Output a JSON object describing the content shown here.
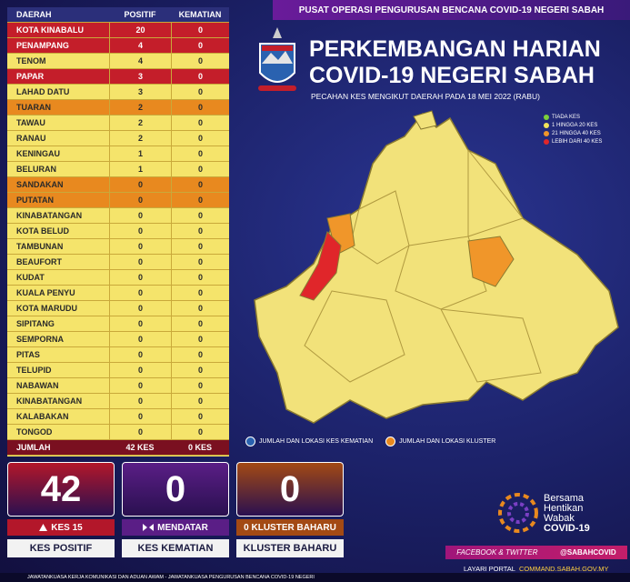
{
  "header": {
    "banner": "PUSAT OPERASI PENGURUSAN BENCANA COVID-19 NEGERI SABAH",
    "title_line1": "PERKEMBANGAN HARIAN",
    "title_line2": "COVID-19 NEGERI SABAH",
    "subtitle": "PECAHAN KES MENGIKUT DAERAH PADA 18 MEI 2022 (RABU)"
  },
  "legend": [
    {
      "label": "TIADA KES",
      "color": "#7ccf3a"
    },
    {
      "label": "1 HINGGA 20 KES",
      "color": "#f2e45a"
    },
    {
      "label": "21 HINGGA 40 KES",
      "color": "#f0962a"
    },
    {
      "label": "LEBIH DARI 40 KES",
      "color": "#e0262a"
    }
  ],
  "table": {
    "columns": [
      "DAERAH",
      "POSITIF",
      "KEMATIAN"
    ],
    "rows": [
      {
        "district": "KOTA KINABALU",
        "positif": 20,
        "kematian": 0,
        "color": "#c41e2a"
      },
      {
        "district": "PENAMPANG",
        "positif": 4,
        "kematian": 0,
        "color": "#c41e2a"
      },
      {
        "district": "TENOM",
        "positif": 4,
        "kematian": 0,
        "color": "#f5e46b"
      },
      {
        "district": "PAPAR",
        "positif": 3,
        "kematian": 0,
        "color": "#c41e2a"
      },
      {
        "district": "LAHAD DATU",
        "positif": 3,
        "kematian": 0,
        "color": "#f5e46b"
      },
      {
        "district": "TUARAN",
        "positif": 2,
        "kematian": 0,
        "color": "#e8891f"
      },
      {
        "district": "TAWAU",
        "positif": 2,
        "kematian": 0,
        "color": "#f5e46b"
      },
      {
        "district": "RANAU",
        "positif": 2,
        "kematian": 0,
        "color": "#f5e46b"
      },
      {
        "district": "KENINGAU",
        "positif": 1,
        "kematian": 0,
        "color": "#f5e46b"
      },
      {
        "district": "BELURAN",
        "positif": 1,
        "kematian": 0,
        "color": "#f5e46b"
      },
      {
        "district": "SANDAKAN",
        "positif": 0,
        "kematian": 0,
        "color": "#e8891f"
      },
      {
        "district": "PUTATAN",
        "positif": 0,
        "kematian": 0,
        "color": "#e8891f"
      },
      {
        "district": "KINABATANGAN",
        "positif": 0,
        "kematian": 0,
        "color": "#f5e46b"
      },
      {
        "district": "KOTA BELUD",
        "positif": 0,
        "kematian": 0,
        "color": "#f5e46b"
      },
      {
        "district": "TAMBUNAN",
        "positif": 0,
        "kematian": 0,
        "color": "#f5e46b"
      },
      {
        "district": "BEAUFORT",
        "positif": 0,
        "kematian": 0,
        "color": "#f5e46b"
      },
      {
        "district": "KUDAT",
        "positif": 0,
        "kematian": 0,
        "color": "#f5e46b"
      },
      {
        "district": "KUALA PENYU",
        "positif": 0,
        "kematian": 0,
        "color": "#f5e46b"
      },
      {
        "district": "KOTA MARUDU",
        "positif": 0,
        "kematian": 0,
        "color": "#f5e46b"
      },
      {
        "district": "SIPITANG",
        "positif": 0,
        "kematian": 0,
        "color": "#f5e46b"
      },
      {
        "district": "SEMPORNA",
        "positif": 0,
        "kematian": 0,
        "color": "#f5e46b"
      },
      {
        "district": "PITAS",
        "positif": 0,
        "kematian": 0,
        "color": "#f5e46b"
      },
      {
        "district": "TELUPID",
        "positif": 0,
        "kematian": 0,
        "color": "#f5e46b"
      },
      {
        "district": "NABAWAN",
        "positif": 0,
        "kematian": 0,
        "color": "#f5e46b"
      },
      {
        "district": "KINABATANGAN",
        "positif": 0,
        "kematian": 0,
        "color": "#f5e46b"
      },
      {
        "district": "KALABAKAN",
        "positif": 0,
        "kematian": 0,
        "color": "#f5e46b"
      },
      {
        "district": "TONGOD",
        "positif": 0,
        "kematian": 0,
        "color": "#f5e46b"
      }
    ],
    "total": {
      "label": "JUMLAH",
      "positif": "42 KES",
      "kematian": "0 KES"
    }
  },
  "map_legend": [
    "JUMLAH DAN LOKASI KES KEMATIAN",
    "JUMLAH DAN LOKASI KLUSTER"
  ],
  "cards": [
    {
      "value": 42,
      "change": "KES 15",
      "label": "KES POSITIF",
      "color": "#b3172a"
    },
    {
      "value": 0,
      "change": "MENDATAR",
      "label": "KES KEMATIAN",
      "color": "#5a1e86"
    },
    {
      "value": 0,
      "change": "0 KLUSTER BAHARU",
      "label": "KLUSTER BAHARU",
      "color": "#a34a14"
    }
  ],
  "campaign": [
    "Bersama",
    "Hentikan",
    "Wabak",
    "COVID-19"
  ],
  "social": {
    "label": "FACEBOOK & TWITTER",
    "handle": "@SABAHCOVID"
  },
  "portal": {
    "label": "LAYARI PORTAL",
    "url": "COMMAND.SABAH.GOV.MY"
  },
  "footer": "JAWATANKUASA KERJA KOMUNIKASI DAN ADUAN AWAM - JAWATANKUASA PENGURUSAN BENCANA COVID-19 NEGERI"
}
